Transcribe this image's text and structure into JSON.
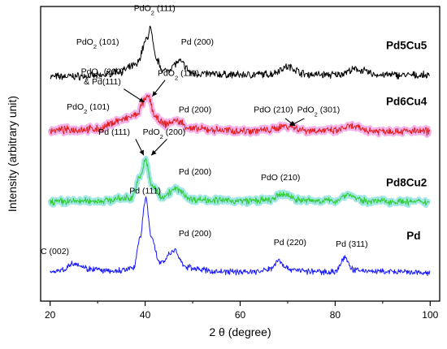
{
  "chart_data": {
    "type": "line",
    "xlabel": "2 θ (degree)",
    "ylabel": "Intensity (arbitrary unit)",
    "xlim": [
      18,
      102
    ],
    "ylim": [
      0,
      10
    ],
    "xticks": [
      20,
      40,
      60,
      80,
      100
    ],
    "grid": false,
    "legend": "none",
    "series": [
      {
        "name": "Pd5Cu5",
        "color": "#000000",
        "band_color": "",
        "noise": 0.1,
        "points": [
          [
            20,
            7.62
          ],
          [
            30,
            7.64
          ],
          [
            35,
            7.82
          ],
          [
            38,
            8.0
          ],
          [
            40.5,
            8.9
          ],
          [
            41,
            9.3
          ],
          [
            42.3,
            8.2
          ],
          [
            44,
            7.8
          ],
          [
            47.3,
            8.12
          ],
          [
            50,
            7.72
          ],
          [
            60,
            7.68
          ],
          [
            66,
            7.7
          ],
          [
            70,
            7.95
          ],
          [
            74,
            7.7
          ],
          [
            80,
            7.68
          ],
          [
            84.5,
            7.86
          ],
          [
            89,
            7.68
          ],
          [
            100,
            7.66
          ]
        ],
        "labels": [
          {
            "x": 42,
            "y": 9.85,
            "text": "PdO",
            "sub": "2",
            "rest": " (111)"
          },
          {
            "x": 30,
            "y": 8.7,
            "text": "PdO",
            "sub": "2",
            "rest": " (101)"
          },
          {
            "x": 51,
            "y": 8.7,
            "text": "Pd (200)"
          },
          {
            "x": 95,
            "y": 8.55,
            "text": "Pd5Cu5",
            "name": true
          }
        ]
      },
      {
        "name": "Pd6Cu4",
        "color": "#e02020",
        "band_color": "#f2a6e6",
        "noise": 0.1,
        "points": [
          [
            20,
            5.8
          ],
          [
            30,
            5.84
          ],
          [
            35,
            6.15
          ],
          [
            38,
            6.3
          ],
          [
            40,
            6.8
          ],
          [
            40.6,
            6.95
          ],
          [
            42.3,
            6.2
          ],
          [
            44,
            6.0
          ],
          [
            46.5,
            6.12
          ],
          [
            50,
            5.84
          ],
          [
            60,
            5.78
          ],
          [
            66,
            5.8
          ],
          [
            69.5,
            5.95
          ],
          [
            74,
            5.8
          ],
          [
            80,
            5.78
          ],
          [
            83,
            5.92
          ],
          [
            88,
            5.78
          ],
          [
            100,
            5.76
          ]
        ],
        "labels": [
          {
            "x": 31,
            "y": 7.7,
            "text": "PdO",
            "sub": "2",
            "rest": " (200)"
          },
          {
            "x": 31,
            "y": 7.35,
            "text": "& Pd(111)"
          },
          {
            "x": 47,
            "y": 7.65,
            "text": "PdO",
            "sub": "2",
            "rest": " (111)"
          },
          {
            "x": 28,
            "y": 6.5,
            "text": "PdO",
            "sub": "2",
            "rest": " (101)"
          },
          {
            "x": 50.5,
            "y": 6.4,
            "text": "Pd (200)"
          },
          {
            "x": 67,
            "y": 6.4,
            "text": "PdO (210)"
          },
          {
            "x": 76.5,
            "y": 6.4,
            "text": "PdO",
            "sub": "2",
            "rest": " (301)"
          },
          {
            "x": 95,
            "y": 6.65,
            "text": "Pd6Cu4",
            "name": true
          }
        ]
      },
      {
        "name": "Pd8Cu2",
        "color": "#33cc33",
        "band_color": "#8fe3e0",
        "noise": 0.09,
        "points": [
          [
            20,
            3.38
          ],
          [
            30,
            3.4
          ],
          [
            37,
            3.5
          ],
          [
            39,
            4.2
          ],
          [
            40,
            4.8
          ],
          [
            41.5,
            3.9
          ],
          [
            43.5,
            3.55
          ],
          [
            46.5,
            3.8
          ],
          [
            50,
            3.45
          ],
          [
            60,
            3.4
          ],
          [
            66,
            3.42
          ],
          [
            69,
            3.62
          ],
          [
            73,
            3.42
          ],
          [
            80,
            3.4
          ],
          [
            82.5,
            3.62
          ],
          [
            86,
            3.4
          ],
          [
            100,
            3.36
          ]
        ],
        "labels": [
          {
            "x": 33.5,
            "y": 5.65,
            "text": "Pd (111)"
          },
          {
            "x": 44,
            "y": 5.65,
            "text": "PdO",
            "sub": "2",
            "rest": " (200)"
          },
          {
            "x": 50.5,
            "y": 4.3,
            "text": "Pd (200)"
          },
          {
            "x": 68.5,
            "y": 4.1,
            "text": "PdO (210)"
          },
          {
            "x": 95,
            "y": 3.9,
            "text": "Pd8Cu2",
            "name": true
          }
        ]
      },
      {
        "name": "Pd",
        "color": "#1a1aff",
        "band_color": "",
        "noise": 0.08,
        "points": [
          [
            20,
            1.0
          ],
          [
            22.5,
            1.05
          ],
          [
            25,
            1.3
          ],
          [
            28,
            1.1
          ],
          [
            33,
            1.0
          ],
          [
            37.5,
            1.1
          ],
          [
            39,
            2.2
          ],
          [
            40.1,
            3.5
          ],
          [
            41.3,
            2.2
          ],
          [
            43,
            1.3
          ],
          [
            46.2,
            1.7
          ],
          [
            48.5,
            1.15
          ],
          [
            55,
            1.0
          ],
          [
            64,
            1.0
          ],
          [
            66.5,
            1.1
          ],
          [
            68,
            1.4
          ],
          [
            70,
            1.1
          ],
          [
            75,
            1.0
          ],
          [
            80,
            1.0
          ],
          [
            82,
            1.45
          ],
          [
            84,
            1.05
          ],
          [
            90,
            1.0
          ],
          [
            100,
            0.95
          ]
        ],
        "labels": [
          {
            "x": 40,
            "y": 3.65,
            "text": "Pd (111)"
          },
          {
            "x": 21,
            "y": 1.6,
            "text": "C (002)"
          },
          {
            "x": 50.5,
            "y": 2.2,
            "text": "Pd (200)"
          },
          {
            "x": 70.5,
            "y": 1.9,
            "text": "Pd (220)"
          },
          {
            "x": 83.5,
            "y": 1.85,
            "text": "Pd (311)"
          },
          {
            "x": 96.5,
            "y": 2.1,
            "text": "Pd",
            "name": true
          }
        ]
      }
    ],
    "arrows": [
      [
        [
          35.5,
          7.2
        ],
        [
          39.8,
          6.75
        ]
      ],
      [
        [
          44.2,
          7.5
        ],
        [
          41.5,
          6.95
        ]
      ],
      [
        [
          69.5,
          6.2
        ],
        [
          71.5,
          5.95
        ]
      ],
      [
        [
          73.5,
          6.2
        ],
        [
          70.5,
          5.95
        ]
      ],
      [
        [
          38,
          5.5
        ],
        [
          39.7,
          4.95
        ]
      ],
      [
        [
          44.6,
          5.5
        ],
        [
          41.3,
          4.95
        ]
      ]
    ]
  }
}
